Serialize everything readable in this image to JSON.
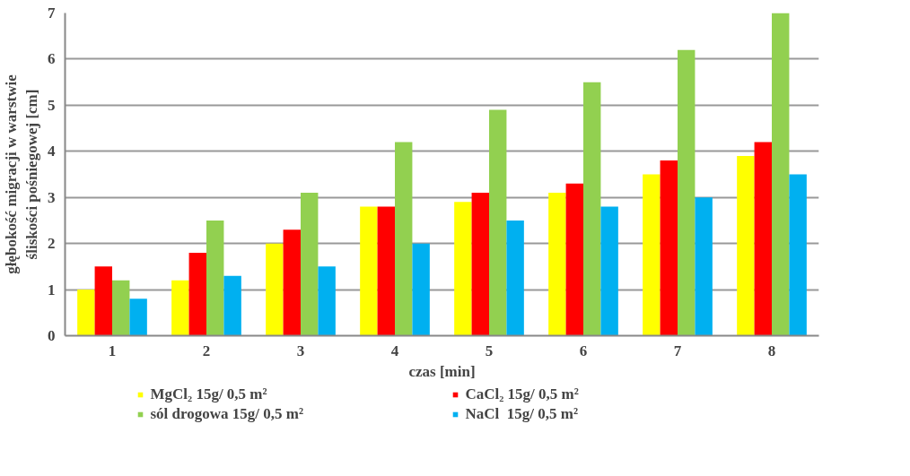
{
  "chart_data": {
    "type": "bar",
    "xlabel": "czas [min]",
    "ylabel": "głębokość migracji w warstwie\nśliskości pośniegowej [cm]",
    "categories": [
      "1",
      "2",
      "3",
      "4",
      "5",
      "6",
      "7",
      "8"
    ],
    "series": [
      {
        "name": "MgCl₂ 15g/ 0,5 m²",
        "color": "#ffff00",
        "values": [
          1.0,
          1.2,
          2.0,
          2.8,
          2.9,
          3.1,
          3.5,
          3.9
        ]
      },
      {
        "name": "CaCl₂ 15g/ 0,5 m²",
        "color": "#ff0000",
        "values": [
          1.5,
          1.8,
          2.3,
          2.8,
          3.1,
          3.3,
          3.8,
          4.2
        ]
      },
      {
        "name": "sól drogowa 15g/ 0,5 m²",
        "color": "#92d050",
        "values": [
          1.2,
          2.5,
          3.1,
          4.2,
          4.9,
          5.5,
          6.2,
          7.0
        ]
      },
      {
        "name": "NaCl  15g/ 0,5 m²",
        "color": "#00b0f0",
        "values": [
          0.8,
          1.3,
          1.5,
          2.0,
          2.5,
          2.8,
          3.0,
          3.5
        ]
      }
    ],
    "ylim": [
      0,
      7
    ],
    "yticks": [
      0,
      1,
      2,
      3,
      4,
      5,
      6,
      7
    ],
    "grid": "y",
    "legend": "bottom"
  }
}
